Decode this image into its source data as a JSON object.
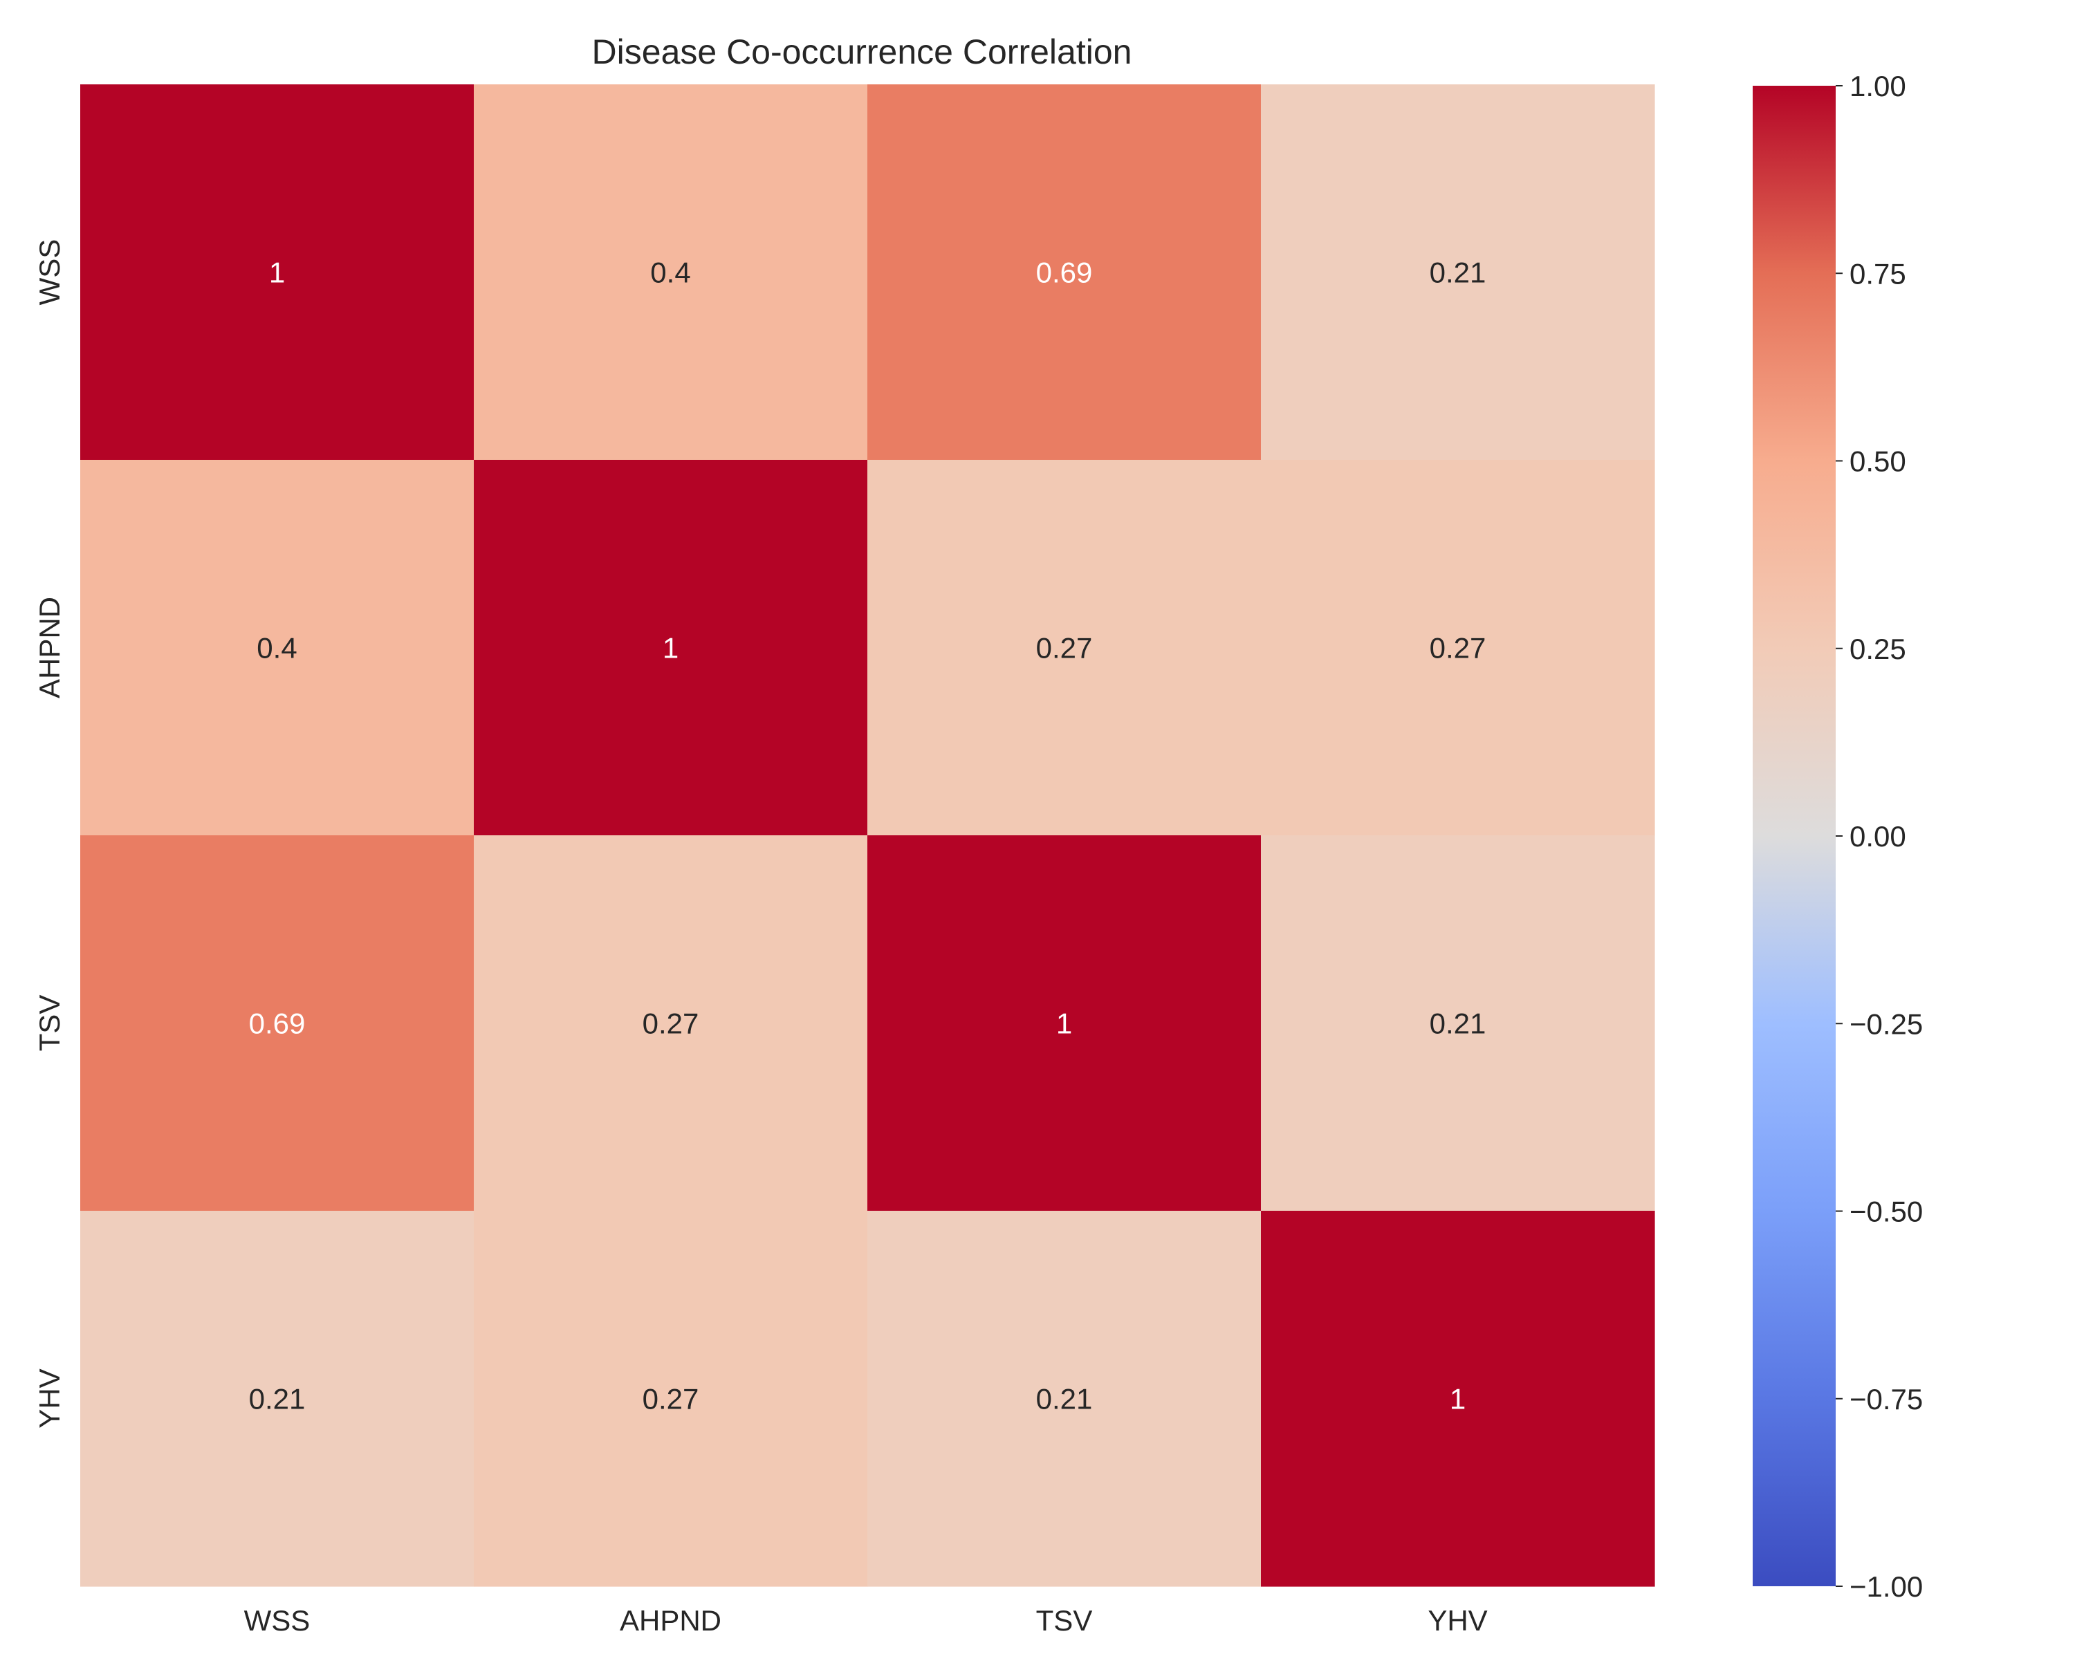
{
  "chart_data": {
    "type": "heatmap",
    "title": "Disease Co-occurrence Correlation",
    "x_categories": [
      "WSS",
      "AHPND",
      "TSV",
      "YHV"
    ],
    "y_categories": [
      "WSS",
      "AHPND",
      "TSV",
      "YHV"
    ],
    "values": [
      [
        1,
        0.4,
        0.69,
        0.21
      ],
      [
        0.4,
        1,
        0.27,
        0.27
      ],
      [
        0.69,
        0.27,
        1,
        0.21
      ],
      [
        0.21,
        0.27,
        0.21,
        1
      ]
    ],
    "value_labels": [
      [
        "1",
        "0.4",
        "0.69",
        "0.21"
      ],
      [
        "0.4",
        "1",
        "0.27",
        "0.27"
      ],
      [
        "0.69",
        "0.27",
        "1",
        "0.21"
      ],
      [
        "0.21",
        "0.27",
        "0.21",
        "1"
      ]
    ],
    "colormap": "coolwarm",
    "vmin": -1.0,
    "vmax": 1.0,
    "colorbar_ticks": [
      1.0,
      0.75,
      0.5,
      0.25,
      0.0,
      -0.25,
      -0.5,
      -0.75,
      -1.0
    ],
    "colorbar_tick_labels": [
      "1.00",
      "0.75",
      "0.50",
      "0.25",
      "0.00",
      "−0.25",
      "−0.50",
      "−0.75",
      "−1.00"
    ],
    "colorbar_position": "right",
    "grid": false
  }
}
